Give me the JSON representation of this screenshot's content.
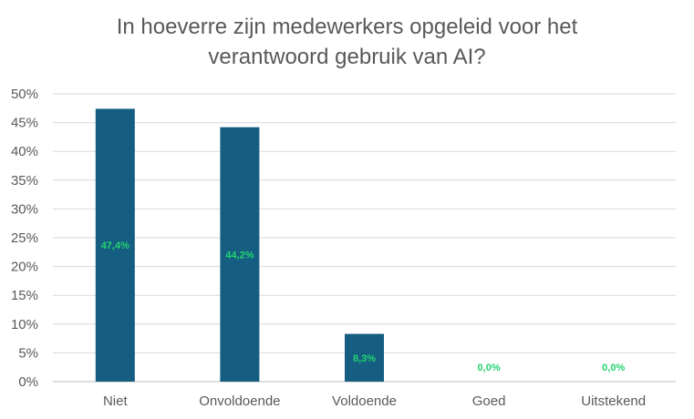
{
  "chart_data": {
    "type": "bar",
    "title": "In hoeverre zijn medewerkers opgeleid voor het\nverantwoord gebruik van AI?",
    "categories": [
      "Niet",
      "Onvoldoende",
      "Voldoende",
      "Goed",
      "Uitstekend"
    ],
    "values": [
      47.4,
      44.2,
      8.3,
      0.0,
      0.0
    ],
    "data_labels": [
      "47,4%",
      "44,2%",
      "8,3%",
      "0,0%",
      "0,0%"
    ],
    "y_ticks": [
      "0%",
      "5%",
      "10%",
      "15%",
      "20%",
      "25%",
      "30%",
      "35%",
      "40%",
      "45%",
      "50%"
    ],
    "ylim": [
      0,
      50
    ],
    "xlabel": "",
    "ylabel": "",
    "grid": true,
    "legend": "none",
    "colors": {
      "bar": "#155e82",
      "data_label": "#22d46e",
      "grid": "#d9d9d9",
      "axis_text": "#595959"
    }
  }
}
